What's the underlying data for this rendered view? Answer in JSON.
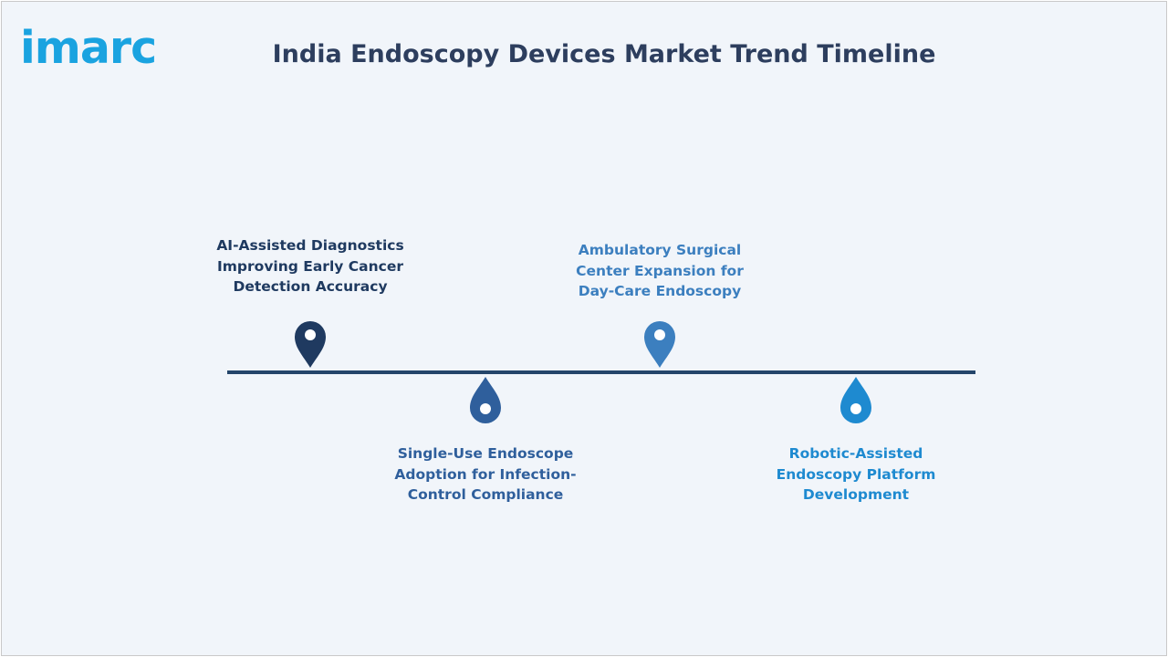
{
  "logo": {
    "text": "imarc"
  },
  "title": "India Endoscopy Devices Market Trend Timeline",
  "colors": {
    "line": "#24456a",
    "navy": "#1f3a60",
    "steel": "#2f5f9c",
    "sky": "#3c7fbf",
    "cyan": "#1e8ad0",
    "logo": "#1aa3e0"
  },
  "milestones": [
    {
      "label": "AI-Assisted Diagnostics Improving Early Cancer Detection Accuracy",
      "position": "above",
      "color": "#1f3a60",
      "icon": "map-pin-icon"
    },
    {
      "label": "Single-Use Endoscope Adoption for Infection-Control Compliance",
      "position": "below",
      "color": "#2f5f9c",
      "icon": "drop-pin-icon"
    },
    {
      "label": "Ambulatory Surgical Center Expansion for Day-Care Endoscopy",
      "position": "above",
      "color": "#3c7fbf",
      "icon": "map-pin-icon"
    },
    {
      "label": "Robotic-Assisted Endoscopy Platform Development",
      "position": "below",
      "color": "#1e8ad0",
      "icon": "drop-pin-icon"
    }
  ]
}
